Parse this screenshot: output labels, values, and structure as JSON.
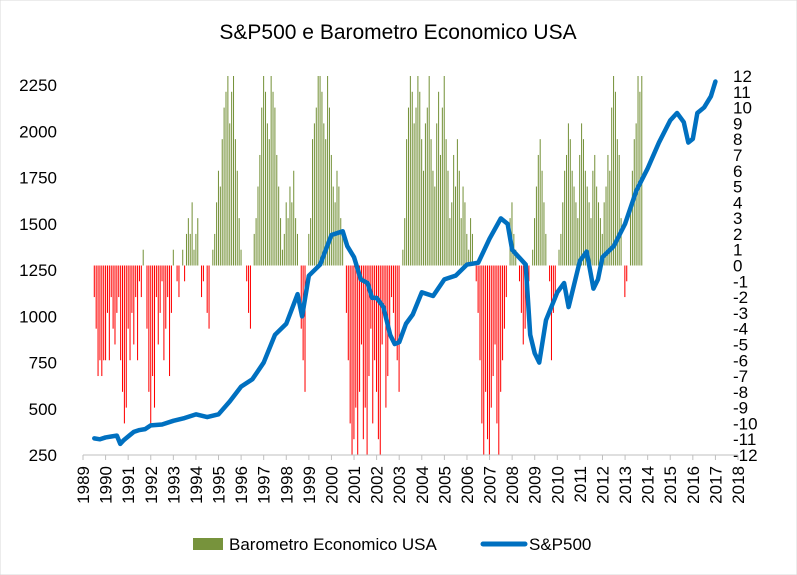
{
  "chart_data": {
    "type": "bar+line",
    "title": "S&P500 e Barometro Economico USA",
    "x_ticks": [
      "1989",
      "1990",
      "1991",
      "1992",
      "1993",
      "1994",
      "1995",
      "1996",
      "1997",
      "1998",
      "1999",
      "2000",
      "2001",
      "2002",
      "2003",
      "2004",
      "2005",
      "2006",
      "2007",
      "2008",
      "2009",
      "2010",
      "2011",
      "2012",
      "2013",
      "2014",
      "2015",
      "2016",
      "2017",
      "2018"
    ],
    "xlim": [
      1989,
      2018
    ],
    "left_axis": {
      "ticks": [
        "250",
        "500",
        "750",
        "1000",
        "1250",
        "1500",
        "1750",
        "2000",
        "2250"
      ],
      "ylim": [
        250,
        2300
      ]
    },
    "right_axis": {
      "ticks": [
        "12",
        "11",
        "10",
        "9",
        "8",
        "7",
        "6",
        "5",
        "4",
        "3",
        "2",
        "1",
        "0",
        "-1",
        "-2",
        "-3",
        "-4",
        "-5",
        "-6",
        "-7",
        "-8",
        "-9",
        "-10",
        "-11",
        "-12"
      ],
      "ylim": [
        -12,
        12
      ]
    },
    "colors": {
      "positive_bar": "#77933C",
      "negative_bar": "#FF0000",
      "line": "#0070C0"
    },
    "legend": [
      {
        "label": "Barometro Economico USA",
        "color": "#77933C",
        "kind": "bar"
      },
      {
        "label": "S&P500",
        "color": "#0070C0",
        "kind": "line"
      }
    ],
    "series": [
      {
        "name": "Barometro Economico USA",
        "axis": "right",
        "step": 0.0833,
        "start": 1989.5,
        "values": [
          -2,
          -4,
          -7,
          -6,
          -7,
          -6,
          -6,
          -3,
          -6,
          -2,
          -4,
          -5,
          -3,
          -2,
          -6,
          -8,
          -10,
          -9,
          -4,
          -6,
          -3,
          -5,
          -2,
          -6,
          -1,
          -2,
          1,
          0,
          -4,
          -8,
          -10,
          -7,
          -9,
          -2,
          -5,
          -3,
          -1,
          -6,
          -4,
          -2,
          -7,
          -3,
          1,
          0,
          -1,
          -2,
          0,
          1,
          -1,
          2,
          3,
          2,
          4,
          1,
          2,
          3,
          0,
          -2,
          -1,
          0,
          -3,
          -4,
          0,
          1,
          2,
          4,
          6,
          5,
          8,
          10,
          11,
          12,
          9,
          11,
          12,
          8,
          6,
          3,
          1,
          0,
          0,
          -1,
          -3,
          -4,
          0,
          2,
          3,
          5,
          7,
          10,
          12,
          11,
          9,
          8,
          12,
          11,
          10,
          7,
          5,
          3,
          1,
          2,
          4,
          3,
          5,
          4,
          6,
          3,
          2,
          0,
          -4,
          -6,
          -8,
          0,
          2,
          3,
          8,
          9,
          10,
          12,
          12,
          11,
          9,
          8,
          12,
          10,
          7,
          5,
          4,
          6,
          5,
          3,
          2,
          0,
          -3,
          -6,
          -10,
          -12,
          -11,
          -9,
          -12,
          -8,
          -5,
          -11,
          -9,
          -12,
          -7,
          -4,
          -10,
          -6,
          -8,
          -11,
          -12,
          -5,
          -3,
          -9,
          -7,
          -4,
          -2,
          -3,
          -5,
          -6,
          -8,
          0,
          1,
          3,
          8,
          10,
          12,
          11,
          9,
          10,
          12,
          11,
          8,
          6,
          9,
          10,
          12,
          8,
          6,
          5,
          9,
          11,
          7,
          10,
          12,
          8,
          6,
          3,
          4,
          7,
          5,
          8,
          6,
          3,
          5,
          4,
          2,
          1,
          3,
          2,
          0,
          -1,
          -3,
          -6,
          -10,
          -12,
          -8,
          -11,
          -12,
          -9,
          -7,
          -5,
          -10,
          -12,
          -8,
          -6,
          -4,
          -2,
          0,
          3,
          4,
          2,
          1,
          0,
          -1,
          -3,
          -5,
          -4,
          -2,
          -1,
          0,
          1,
          3,
          5,
          7,
          8,
          6,
          4,
          2,
          0,
          -1,
          -6,
          -3,
          -2,
          0,
          1,
          2,
          4,
          6,
          7,
          9,
          8,
          6,
          5,
          4,
          3,
          7,
          9,
          8,
          6,
          5,
          4,
          3,
          6,
          7,
          5,
          4,
          3,
          2,
          4,
          5,
          7,
          6,
          10,
          12,
          11,
          8,
          7,
          3,
          0,
          -2,
          -1,
          0,
          4,
          6,
          8,
          9,
          12,
          11,
          12
        ]
      },
      {
        "name": "S&P500",
        "axis": "left",
        "x": [
          1989.5,
          1989.75,
          1990.0,
          1990.25,
          1990.5,
          1990.65,
          1990.8,
          1991.0,
          1991.25,
          1991.5,
          1991.75,
          1992.0,
          1992.5,
          1993.0,
          1993.5,
          1994.0,
          1994.5,
          1995.0,
          1995.5,
          1996.0,
          1996.5,
          1997.0,
          1997.5,
          1998.0,
          1998.5,
          1998.7,
          1999.0,
          1999.5,
          2000.0,
          2000.5,
          2000.7,
          2001.0,
          2001.3,
          2001.6,
          2001.8,
          2002.0,
          2002.3,
          2002.6,
          2002.8,
          2003.0,
          2003.3,
          2003.6,
          2004.0,
          2004.5,
          2005.0,
          2005.5,
          2006.0,
          2006.5,
          2007.0,
          2007.5,
          2007.8,
          2008.0,
          2008.3,
          2008.6,
          2008.8,
          2009.0,
          2009.2,
          2009.5,
          2010.0,
          2010.3,
          2010.5,
          2011.0,
          2011.3,
          2011.6,
          2011.8,
          2012.0,
          2012.5,
          2013.0,
          2013.5,
          2014.0,
          2014.5,
          2015.0,
          2015.3,
          2015.6,
          2015.8,
          2016.0,
          2016.2,
          2016.5,
          2016.8,
          2017.0
        ],
        "values": [
          340,
          335,
          345,
          350,
          355,
          310,
          330,
          350,
          375,
          385,
          390,
          410,
          415,
          435,
          450,
          470,
          455,
          470,
          540,
          620,
          660,
          750,
          900,
          960,
          1120,
          1000,
          1220,
          1280,
          1440,
          1460,
          1380,
          1320,
          1200,
          1180,
          1100,
          1100,
          1050,
          900,
          850,
          860,
          960,
          1010,
          1130,
          1110,
          1200,
          1220,
          1280,
          1290,
          1420,
          1530,
          1500,
          1360,
          1320,
          1280,
          900,
          800,
          750,
          980,
          1130,
          1180,
          1050,
          1300,
          1350,
          1150,
          1200,
          1320,
          1380,
          1500,
          1680,
          1800,
          1940,
          2060,
          2100,
          2050,
          1940,
          1960,
          2100,
          2130,
          2190,
          2270
        ]
      }
    ]
  }
}
